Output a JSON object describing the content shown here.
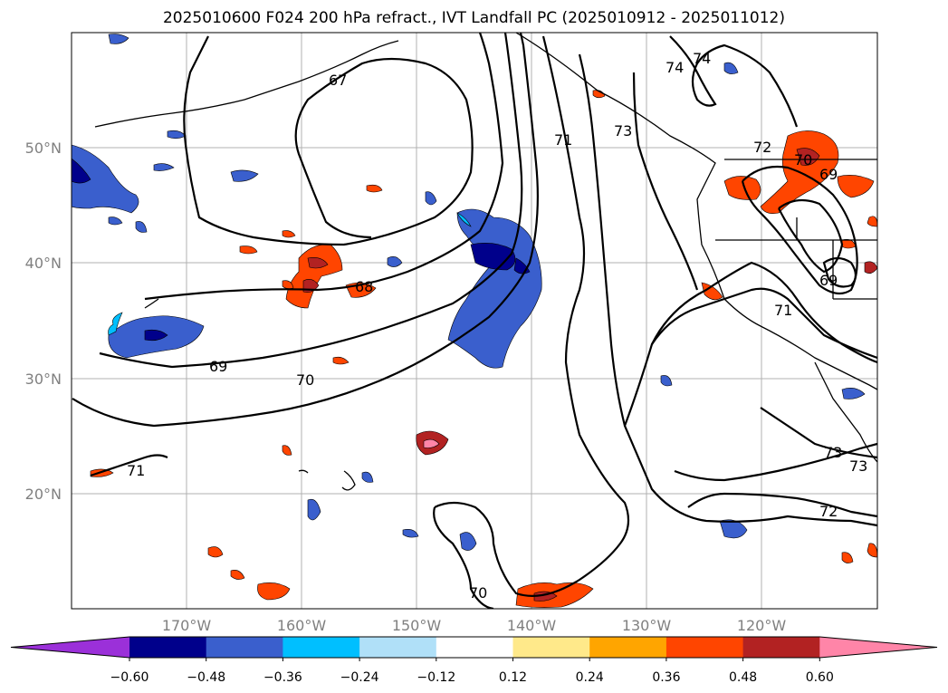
{
  "title": "2025010600 F024 200 hPa refract., IVT Landfall PC (2025010912 - 2025011012)",
  "lat_labels": [
    "50°N",
    "40°N",
    "30°N",
    "20°N"
  ],
  "lon_labels": [
    "170°W",
    "160°W",
    "150°W",
    "140°W",
    "130°W",
    "120°W"
  ],
  "colorbar": {
    "ticks": [
      "−0.60",
      "−0.48",
      "−0.36",
      "−0.24",
      "−0.12",
      "0.12",
      "0.24",
      "0.36",
      "0.48",
      "0.60"
    ],
    "colors": [
      "#9b30d9",
      "#00008b",
      "#3a5fcd",
      "#00bfff",
      "#b0e0f8",
      "#ffffff",
      "#ffe98a",
      "#ffa500",
      "#ff4500",
      "#b22222",
      "#ff85a8"
    ]
  },
  "contour_labels": [
    "67",
    "68",
    "69",
    "70",
    "70",
    "71",
    "71",
    "71",
    "72",
    "72",
    "73",
    "73",
    "73",
    "74",
    "74",
    "69",
    "69",
    "70"
  ]
}
